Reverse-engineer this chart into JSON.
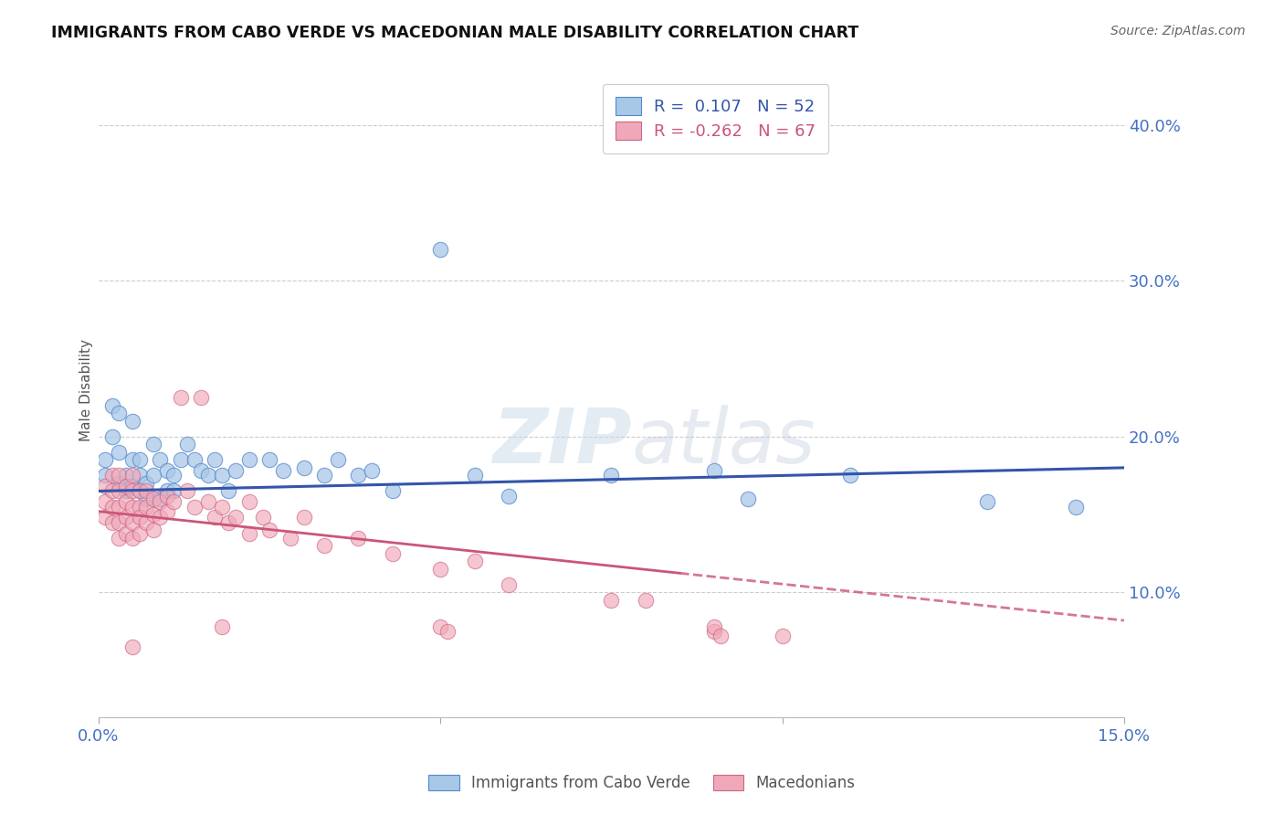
{
  "title": "IMMIGRANTS FROM CABO VERDE VS MACEDONIAN MALE DISABILITY CORRELATION CHART",
  "source": "Source: ZipAtlas.com",
  "ylabel": "Male Disability",
  "xlim": [
    0.0,
    0.15
  ],
  "ylim": [
    0.02,
    0.44
  ],
  "xticks": [
    0.0,
    0.05,
    0.1,
    0.15
  ],
  "xtick_labels": [
    "0.0%",
    "",
    "",
    "15.0%"
  ],
  "ytick_labels_right": [
    "10.0%",
    "20.0%",
    "30.0%",
    "40.0%"
  ],
  "ytick_vals_right": [
    0.1,
    0.2,
    0.3,
    0.4
  ],
  "blue_R": 0.107,
  "blue_N": 52,
  "pink_R": -0.262,
  "pink_N": 67,
  "blue_dot_color": "#a8c8e8",
  "blue_dot_edge": "#5588cc",
  "pink_dot_color": "#f0a8b8",
  "pink_dot_edge": "#cc6688",
  "blue_line_color": "#3355aa",
  "pink_line_color": "#cc5577",
  "legend_blue_label": "Immigrants from Cabo Verde",
  "legend_pink_label": "Macedonians",
  "watermark": "ZIPatlas",
  "background_color": "#ffffff",
  "grid_color": "#cccccc",
  "blue_line_x0": 0.0,
  "blue_line_y0": 0.165,
  "blue_line_x1": 0.15,
  "blue_line_y1": 0.18,
  "pink_line_x0": 0.0,
  "pink_line_y0": 0.152,
  "pink_line_solid_x1": 0.085,
  "pink_line_x1": 0.15,
  "pink_line_y1": 0.082,
  "blue_scatter_x": [
    0.001,
    0.001,
    0.002,
    0.002,
    0.003,
    0.003,
    0.003,
    0.004,
    0.004,
    0.005,
    0.005,
    0.005,
    0.006,
    0.006,
    0.006,
    0.007,
    0.007,
    0.008,
    0.008,
    0.009,
    0.009,
    0.01,
    0.01,
    0.011,
    0.011,
    0.012,
    0.013,
    0.014,
    0.015,
    0.016,
    0.017,
    0.018,
    0.019,
    0.02,
    0.022,
    0.025,
    0.027,
    0.03,
    0.033,
    0.035,
    0.038,
    0.04,
    0.043,
    0.05,
    0.055,
    0.06,
    0.075,
    0.09,
    0.095,
    0.11,
    0.13,
    0.143
  ],
  "blue_scatter_y": [
    0.175,
    0.185,
    0.2,
    0.22,
    0.215,
    0.19,
    0.17,
    0.175,
    0.165,
    0.21,
    0.185,
    0.168,
    0.175,
    0.185,
    0.165,
    0.17,
    0.16,
    0.195,
    0.175,
    0.185,
    0.16,
    0.178,
    0.165,
    0.175,
    0.165,
    0.185,
    0.195,
    0.185,
    0.178,
    0.175,
    0.185,
    0.175,
    0.165,
    0.178,
    0.185,
    0.185,
    0.178,
    0.18,
    0.175,
    0.185,
    0.175,
    0.178,
    0.165,
    0.32,
    0.175,
    0.162,
    0.175,
    0.178,
    0.16,
    0.175,
    0.158,
    0.155
  ],
  "pink_scatter_x": [
    0.001,
    0.001,
    0.001,
    0.002,
    0.002,
    0.002,
    0.002,
    0.003,
    0.003,
    0.003,
    0.003,
    0.003,
    0.004,
    0.004,
    0.004,
    0.004,
    0.005,
    0.005,
    0.005,
    0.005,
    0.005,
    0.006,
    0.006,
    0.006,
    0.006,
    0.007,
    0.007,
    0.007,
    0.008,
    0.008,
    0.008,
    0.009,
    0.009,
    0.01,
    0.01,
    0.011,
    0.012,
    0.013,
    0.014,
    0.015,
    0.016,
    0.017,
    0.018,
    0.019,
    0.02,
    0.022,
    0.024,
    0.025,
    0.028,
    0.03,
    0.033,
    0.038,
    0.043,
    0.05,
    0.055,
    0.06,
    0.075,
    0.08,
    0.09,
    0.1,
    0.018,
    0.022,
    0.05,
    0.051,
    0.09,
    0.091,
    0.005
  ],
  "pink_scatter_y": [
    0.168,
    0.158,
    0.148,
    0.175,
    0.165,
    0.155,
    0.145,
    0.175,
    0.165,
    0.155,
    0.145,
    0.135,
    0.168,
    0.158,
    0.148,
    0.138,
    0.175,
    0.165,
    0.155,
    0.145,
    0.135,
    0.165,
    0.155,
    0.148,
    0.138,
    0.165,
    0.155,
    0.145,
    0.16,
    0.15,
    0.14,
    0.158,
    0.148,
    0.162,
    0.152,
    0.158,
    0.225,
    0.165,
    0.155,
    0.225,
    0.158,
    0.148,
    0.155,
    0.145,
    0.148,
    0.158,
    0.148,
    0.14,
    0.135,
    0.148,
    0.13,
    0.135,
    0.125,
    0.115,
    0.12,
    0.105,
    0.095,
    0.095,
    0.075,
    0.072,
    0.078,
    0.138,
    0.078,
    0.075,
    0.078,
    0.072,
    0.065
  ]
}
